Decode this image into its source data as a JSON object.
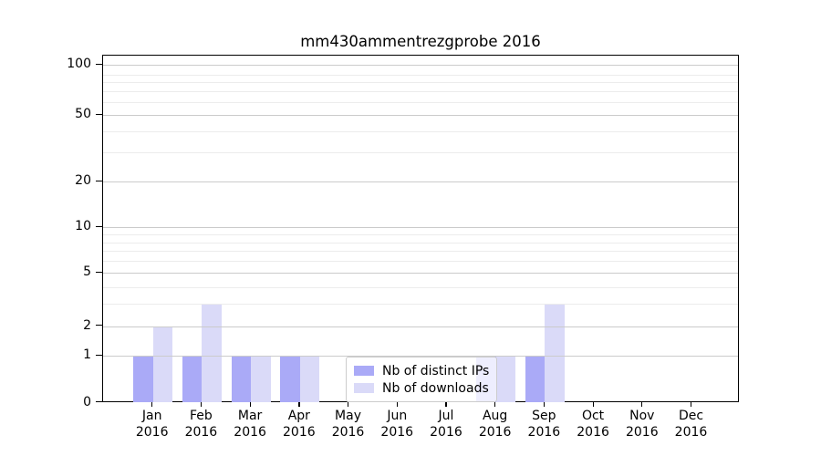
{
  "title": "mm430ammentrezgprobe 2016",
  "year": "2016",
  "chart_data": {
    "type": "bar",
    "title": "mm430ammentrezgprobe 2016",
    "categories": [
      "Jan 2016",
      "Feb 2016",
      "Mar 2016",
      "Apr 2016",
      "May 2016",
      "Jun 2016",
      "Jul 2016",
      "Aug 2016",
      "Sep 2016",
      "Oct 2016",
      "Nov 2016",
      "Dec 2016"
    ],
    "months": [
      "Jan",
      "Feb",
      "Mar",
      "Apr",
      "May",
      "Jun",
      "Jul",
      "Aug",
      "Sep",
      "Oct",
      "Nov",
      "Dec"
    ],
    "series": [
      {
        "name": "Nb of distinct IPs",
        "color": "#aaaaf7",
        "values": [
          1,
          1,
          1,
          1,
          0,
          0,
          0,
          1,
          1,
          0,
          0,
          0
        ]
      },
      {
        "name": "Nb of downloads",
        "color": "#dadaf8",
        "values": [
          2,
          3,
          1,
          1,
          0,
          0,
          0,
          1,
          3,
          0,
          0,
          0
        ]
      }
    ],
    "xlabel": "",
    "ylabel": "",
    "y_axis": {
      "scale": "log-like (log10(1+v))",
      "tick_values": [
        0,
        1,
        2,
        5,
        10,
        20,
        50,
        100
      ],
      "tick_labels": [
        "0",
        "1",
        "2",
        "5",
        "10",
        "20",
        "50",
        "100"
      ],
      "minor_gridline_values": [
        3,
        4,
        6,
        7,
        8,
        9,
        30,
        40,
        60,
        70,
        80,
        90
      ],
      "range": [
        0,
        114
      ]
    },
    "grid": true,
    "legend_position": "inside bottom-center"
  },
  "legend": {
    "items": [
      {
        "label": "Nb of distinct IPs",
        "color": "#aaaaf7"
      },
      {
        "label": "Nb of downloads",
        "color": "#dadaf8"
      }
    ]
  }
}
